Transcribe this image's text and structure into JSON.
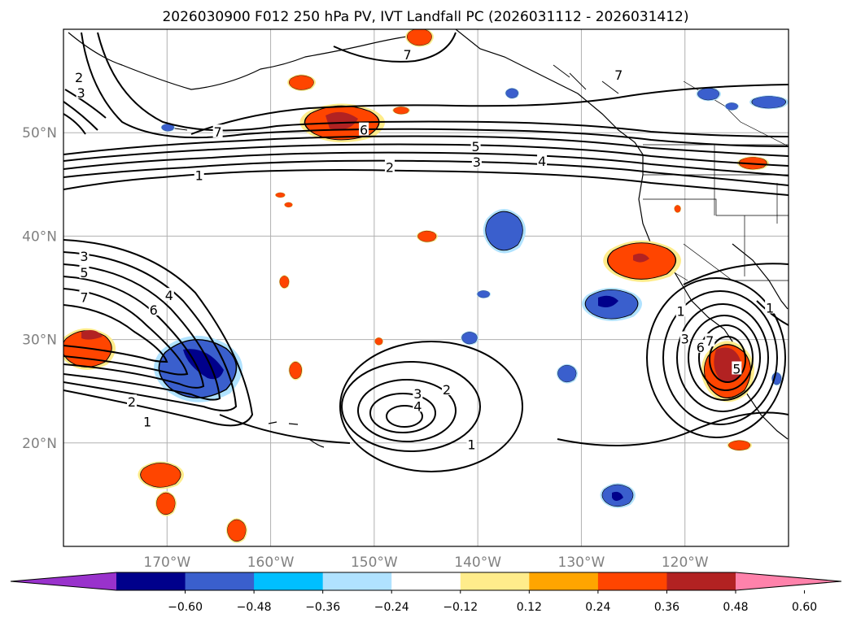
{
  "title": "2026030900 F012 250 hPa PV, IVT Landfall PC (2026031112 - 2026031412)",
  "map": {
    "lon_range": [
      -180,
      -110
    ],
    "lat_range": [
      10,
      60
    ],
    "lon_ticks": [
      {
        "lon": -170,
        "label": "170°W"
      },
      {
        "lon": -160,
        "label": "160°W"
      },
      {
        "lon": -150,
        "label": "150°W"
      },
      {
        "lon": -140,
        "label": "140°W"
      },
      {
        "lon": -130,
        "label": "130°W"
      },
      {
        "lon": -120,
        "label": "120°W"
      }
    ],
    "lat_ticks": [
      {
        "lat": 20,
        "label": "20°N"
      },
      {
        "lat": 30,
        "label": "30°N"
      },
      {
        "lat": 40,
        "label": "40°N"
      },
      {
        "lat": 50,
        "label": "50°N"
      }
    ]
  },
  "colorbar": {
    "ticks": [
      "−0.60",
      "−0.48",
      "−0.36",
      "−0.24",
      "−0.12",
      "0.12",
      "0.24",
      "0.36",
      "0.48",
      "0.60"
    ],
    "colors": [
      "#9932cc",
      "#00008b",
      "#3a5fcd",
      "#00bfff",
      "#b0e2ff",
      "#ffffff",
      "#ffec8b",
      "#ffa500",
      "#ff4500",
      "#b22222",
      "#ff82ab"
    ]
  },
  "contours": {
    "color": "#000000",
    "labels": [
      {
        "text": "2",
        "lon": -178.5,
        "lat": 55.3
      },
      {
        "text": "3",
        "lon": -178.3,
        "lat": 53.8
      },
      {
        "text": "7",
        "lon": -146.8,
        "lat": 57.5
      },
      {
        "text": "7",
        "lon": -165.1,
        "lat": 50.0
      },
      {
        "text": "6",
        "lon": -151.0,
        "lat": 50.2
      },
      {
        "text": "5",
        "lon": -140.2,
        "lat": 48.6
      },
      {
        "text": "3",
        "lon": -140.1,
        "lat": 47.1
      },
      {
        "text": "2",
        "lon": -148.5,
        "lat": 46.6
      },
      {
        "text": "4",
        "lon": -133.8,
        "lat": 47.2
      },
      {
        "text": "1",
        "lon": -166.9,
        "lat": 45.8
      },
      {
        "text": "7",
        "lon": -126.4,
        "lat": 55.5
      },
      {
        "text": "3",
        "lon": -178.0,
        "lat": 38.0
      },
      {
        "text": "5",
        "lon": -178.0,
        "lat": 36.4
      },
      {
        "text": "7",
        "lon": -178.0,
        "lat": 34.0
      },
      {
        "text": "6",
        "lon": -171.3,
        "lat": 32.8
      },
      {
        "text": "4",
        "lon": -169.8,
        "lat": 34.2
      },
      {
        "text": "2",
        "lon": -173.4,
        "lat": 23.9
      },
      {
        "text": "1",
        "lon": -171.9,
        "lat": 22.0
      },
      {
        "text": "3",
        "lon": -145.8,
        "lat": 24.7
      },
      {
        "text": "2",
        "lon": -143.0,
        "lat": 25.1
      },
      {
        "text": "4",
        "lon": -145.8,
        "lat": 23.5
      },
      {
        "text": "1",
        "lon": -140.6,
        "lat": 19.8
      },
      {
        "text": "1",
        "lon": -120.4,
        "lat": 32.7
      },
      {
        "text": "3",
        "lon": -120.0,
        "lat": 30.0
      },
      {
        "text": "7",
        "lon": -117.6,
        "lat": 29.8
      },
      {
        "text": "6",
        "lon": -118.5,
        "lat": 29.2
      },
      {
        "text": "5",
        "lon": -115.0,
        "lat": 27.1
      },
      {
        "text": "1",
        "lon": -111.8,
        "lat": 33.0
      }
    ]
  }
}
